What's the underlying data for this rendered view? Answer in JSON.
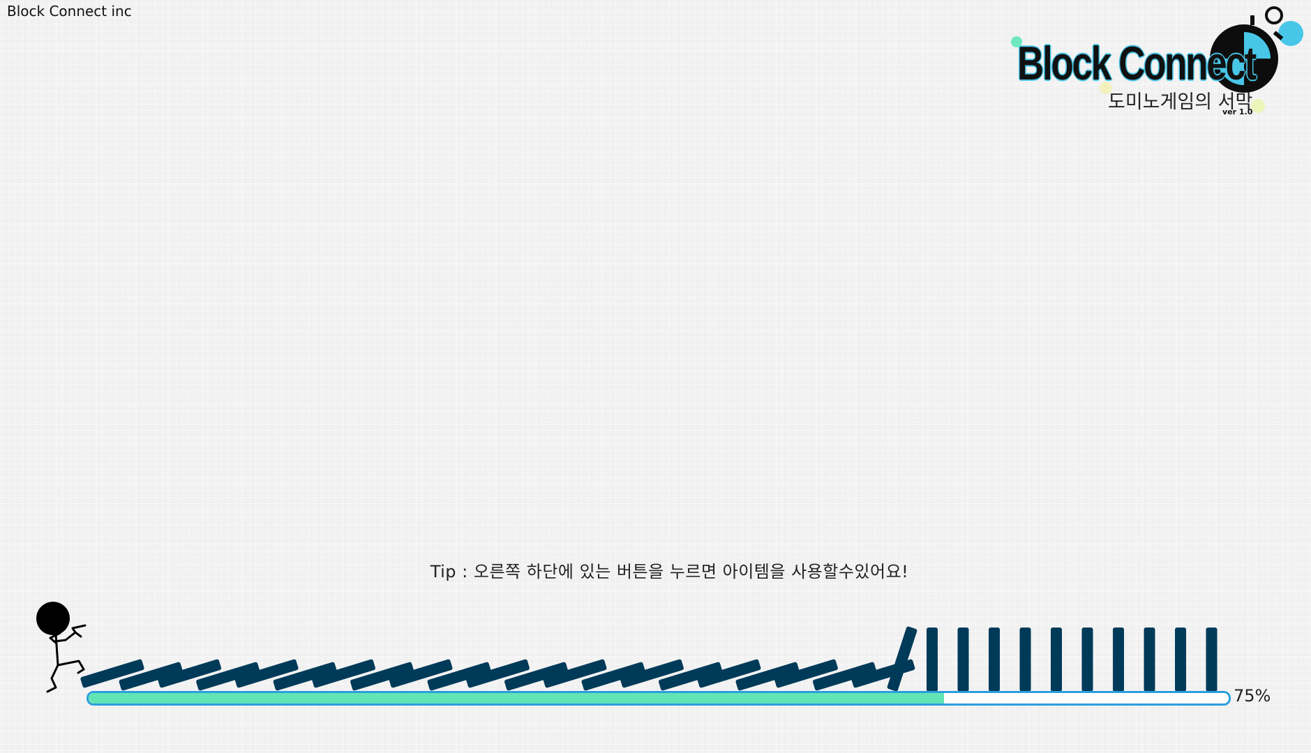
{
  "company": "Block Connect inc",
  "logo": {
    "title": "Block Connect",
    "subtitle": "도미노게임의 서막",
    "version": "ver 1.0"
  },
  "tip": "Tip : 오른쪽 하단에 있는 버튼을 누르면 아이템을 사용할수있어요!",
  "loading": {
    "progress": 0.75,
    "label": "75%"
  },
  "dominoes": {
    "fallen_count": 21,
    "tilting_count": 1,
    "standing_count": 10
  },
  "colors": {
    "domino": "#003a59",
    "progress_fill": "#62e4b4",
    "progress_border": "#2a9fde",
    "logo_accent": "#48c6e8"
  }
}
